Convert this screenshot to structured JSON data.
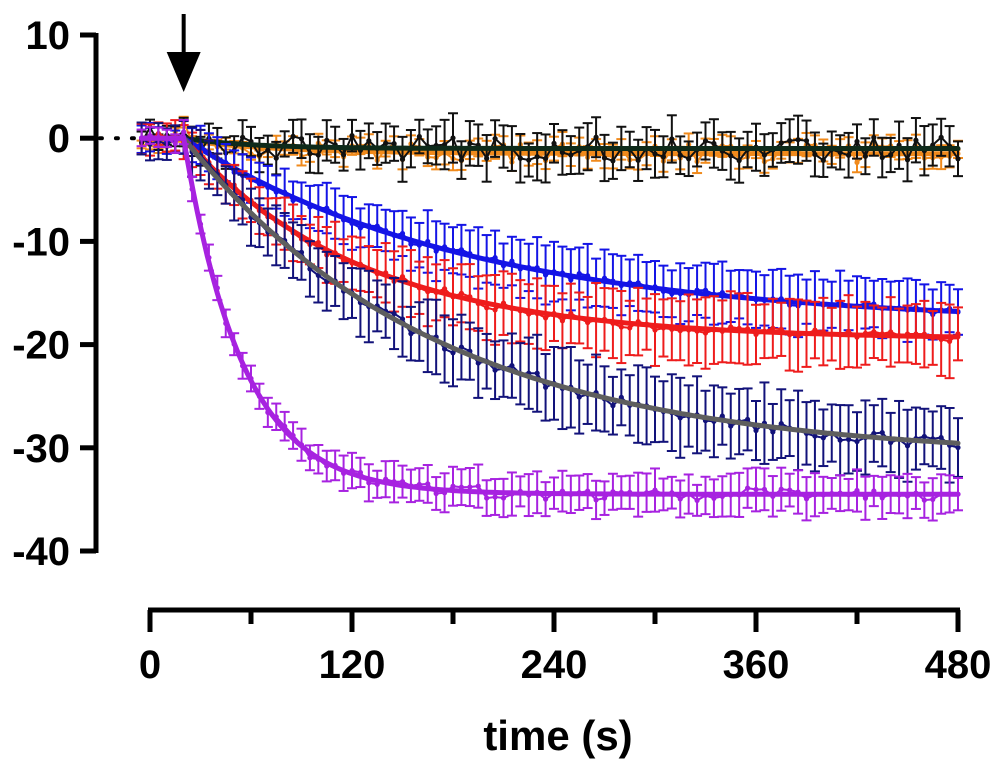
{
  "chart_data": {
    "type": "line",
    "title": "",
    "xlabel": "time (s)",
    "ylabel": "",
    "xlim": [
      0,
      480
    ],
    "ylim": [
      -40,
      10
    ],
    "x_ticks": [
      "0",
      "120",
      "240",
      "360",
      "480"
    ],
    "y_ticks": [
      "10",
      "0",
      "-10",
      "-20",
      "-30",
      "-40"
    ],
    "stimulus_time": 20,
    "baseline_dotted_range": [
      -25,
      0
    ],
    "grid": false,
    "series": [
      {
        "name": "orange",
        "color": "#f08a1c",
        "fit_color": "#f08a1c",
        "start": -0.2,
        "plateau": -1.5,
        "tau": 60,
        "sem": 1.0,
        "noise": 0.9
      },
      {
        "name": "black",
        "color": "#111111",
        "fit_color": "#0e2a1a",
        "start": 0.0,
        "plateau": -1.0,
        "tau": 40,
        "sem": 2.0,
        "noise": 1.2
      },
      {
        "name": "blue",
        "color": "#1414e6",
        "fit_color": "#1414e6",
        "start": 0.0,
        "plateau": -18.0,
        "tau": 170,
        "sem": 2.6,
        "noise": 0.4
      },
      {
        "name": "red",
        "color": "#ee1c1c",
        "fit_color": "#ee1c1c",
        "start": 0.0,
        "plateau": -19.5,
        "tau": 105,
        "sem": 3.0,
        "noise": 0.5
      },
      {
        "name": "navy",
        "color": "#12127a",
        "fit_color": "#5e5e5e",
        "start": 0.0,
        "plateau": -31.0,
        "tau": 150,
        "sem": 3.3,
        "noise": 0.6
      },
      {
        "name": "purple",
        "color": "#a722e0",
        "fit_color": "#a722e0",
        "start": 0.0,
        "plateau": -34.5,
        "tau": 35,
        "sem": 1.8,
        "noise": 0.6
      }
    ]
  }
}
